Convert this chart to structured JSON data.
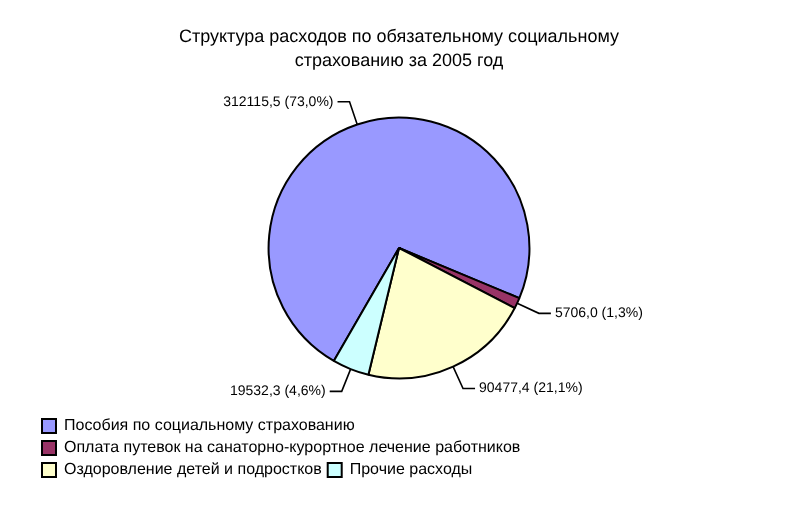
{
  "chart_data": {
    "type": "pie",
    "title": "Структура расходов по обязательному социальному страхованию за 2005 год",
    "categories": [
      "Пособия по социальному страхованию",
      "Оплата путевок на санаторно-курортное лечение работников",
      "Оздоровление детей и подростков",
      "Прочие расходы"
    ],
    "values": [
      312115.5,
      5706.0,
      90477.4,
      19532.3
    ],
    "value_labels": [
      "312115,5 (73,0%)",
      "5706,0 (1,3%)",
      "90477,4 (21,1%)",
      "19532,3 (4,6%)"
    ],
    "colors": [
      "#9999ff",
      "#993366",
      "#ffffcc",
      "#ccffff"
    ],
    "legend": "bottom"
  }
}
